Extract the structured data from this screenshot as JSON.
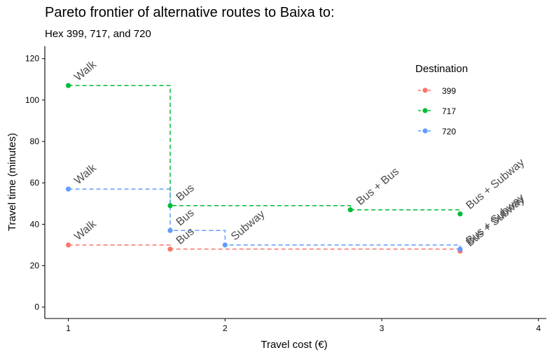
{
  "chart_data": {
    "type": "line",
    "title": "Pareto frontier of alternative routes to Baixa to:",
    "subtitle": "Hex 399, 717, and 720",
    "xlabel": "Travel cost (€)",
    "ylabel": "Travel time (minutes)",
    "xlim": [
      0.85,
      4.05
    ],
    "ylim": [
      -5.5,
      126
    ],
    "x_ticks": [
      1,
      2,
      3,
      4
    ],
    "x_tick_labels": [
      "1",
      "2",
      "3",
      "4"
    ],
    "y_ticks": [
      0,
      20,
      40,
      60,
      80,
      100,
      120
    ],
    "y_tick_labels": [
      "0",
      "20",
      "40",
      "60",
      "80",
      "100",
      "120"
    ],
    "grid": false,
    "line_style": "step-dashed",
    "legend": {
      "title": "Destination",
      "position": "top-right",
      "entries": [
        "399",
        "717",
        "720"
      ]
    },
    "series": [
      {
        "name": "399",
        "color": "#f8766d",
        "points": [
          {
            "x": 1.0,
            "y": 30,
            "label": "Walk"
          },
          {
            "x": 1.65,
            "y": 28,
            "label": "Bus"
          },
          {
            "x": 3.5,
            "y": 27,
            "label": "Bus + Subway"
          }
        ]
      },
      {
        "name": "717",
        "color": "#00ba38",
        "points": [
          {
            "x": 1.0,
            "y": 107,
            "label": "Walk"
          },
          {
            "x": 1.65,
            "y": 49,
            "label": "Bus"
          },
          {
            "x": 2.8,
            "y": 47,
            "label": "Bus + Bus"
          },
          {
            "x": 3.5,
            "y": 45,
            "label": "Bus + Subway"
          }
        ]
      },
      {
        "name": "720",
        "color": "#619cff",
        "points": [
          {
            "x": 1.0,
            "y": 57,
            "label": "Walk"
          },
          {
            "x": 1.65,
            "y": 37,
            "label": "Bus"
          },
          {
            "x": 2.0,
            "y": 30,
            "label": "Subway"
          },
          {
            "x": 3.5,
            "y": 28,
            "label": "Bus + Subway"
          }
        ]
      }
    ]
  }
}
